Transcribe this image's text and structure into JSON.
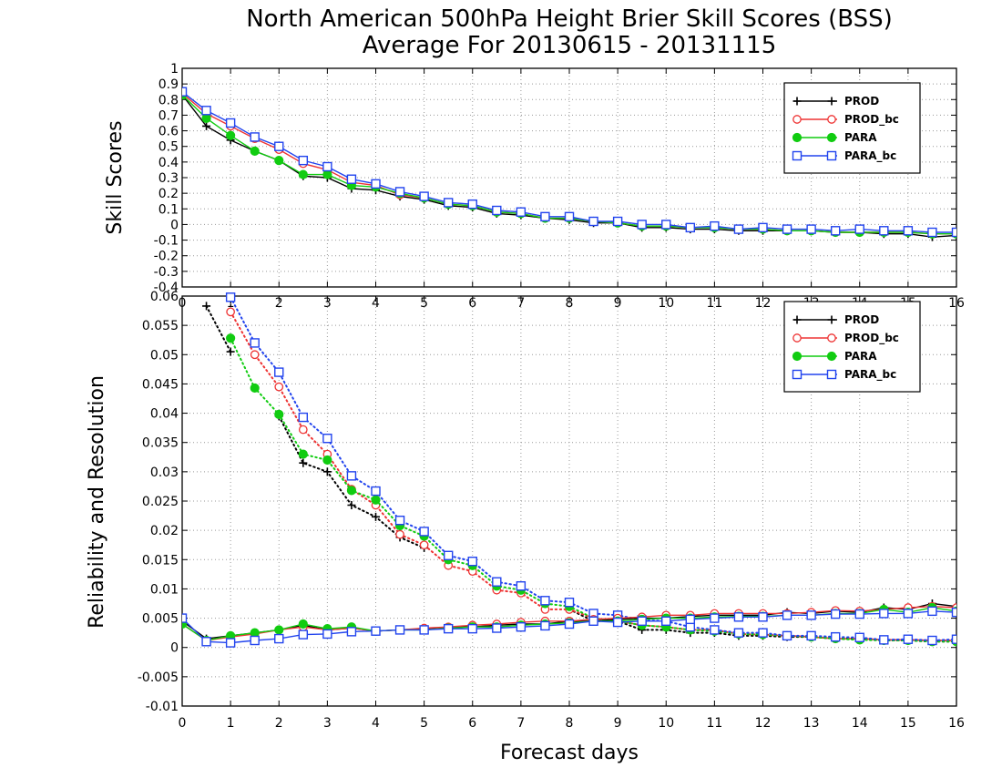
{
  "title": {
    "line1": "North American 500hPa Height Brier Skill Scores (BSS)",
    "line2": "Average For 20130615 - 20131115"
  },
  "xlabel": "Forecast days",
  "colors": {
    "PROD": "#000000",
    "PROD_bc": "#ee3333",
    "PARA": "#11cc11",
    "PARA_bc": "#2244ee",
    "grid": "#999999"
  },
  "chart_data": [
    {
      "type": "line",
      "name": "top-panel",
      "ylabel": "Skill Scores",
      "xlim": [
        0,
        16
      ],
      "ylim": [
        -0.4,
        1
      ],
      "xticks": [
        0,
        1,
        2,
        3,
        4,
        5,
        6,
        7,
        8,
        9,
        10,
        11,
        12,
        13,
        14,
        15,
        16
      ],
      "xtick_labels": [
        "0",
        "1",
        "2",
        "3",
        "4",
        "5",
        "6",
        "7",
        "8",
        "9",
        "10",
        "11",
        "12",
        "13",
        "14",
        "15",
        "16"
      ],
      "yticks": [
        -0.4,
        -0.3,
        -0.2,
        -0.1,
        0,
        0.1,
        0.2,
        0.3,
        0.4,
        0.5,
        0.6,
        0.7,
        0.8,
        0.9,
        1
      ],
      "ytick_labels": [
        "-0.4",
        "-0.3",
        "-0.2",
        "-0.1",
        "0",
        "0.1",
        "0.2",
        "0.3",
        "0.4",
        "0.5",
        "0.6",
        "0.7",
        "0.8",
        "0.9",
        "1"
      ],
      "grid": true,
      "legend": "top-right",
      "x": [
        0,
        0.5,
        1,
        1.5,
        2,
        2.5,
        3,
        3.5,
        4,
        4.5,
        5,
        5.5,
        6,
        6.5,
        7,
        7.5,
        8,
        8.5,
        9,
        9.5,
        10,
        10.5,
        11,
        11.5,
        12,
        12.5,
        13,
        13.5,
        14,
        14.5,
        15,
        15.5,
        16
      ],
      "series": [
        {
          "name": "PROD",
          "marker": "plus",
          "values": [
            0.83,
            0.63,
            0.54,
            0.47,
            0.41,
            0.31,
            0.3,
            0.23,
            0.22,
            0.18,
            0.16,
            0.12,
            0.11,
            0.07,
            0.06,
            0.04,
            0.03,
            0.01,
            0.01,
            -0.02,
            -0.02,
            -0.03,
            -0.03,
            -0.04,
            -0.04,
            -0.04,
            -0.04,
            -0.05,
            -0.05,
            -0.06,
            -0.06,
            -0.08,
            -0.07
          ]
        },
        {
          "name": "PROD_bc",
          "marker": "circle-open",
          "values": [
            0.84,
            0.71,
            0.63,
            0.55,
            0.48,
            0.39,
            0.35,
            0.27,
            0.25,
            0.19,
            0.17,
            0.13,
            0.12,
            0.08,
            0.07,
            0.04,
            0.04,
            0.02,
            0.01,
            -0.01,
            -0.01,
            -0.02,
            -0.02,
            -0.03,
            -0.03,
            -0.04,
            -0.04,
            -0.05,
            -0.05,
            -0.05,
            -0.05,
            -0.06,
            -0.06
          ]
        },
        {
          "name": "PARA",
          "marker": "circle-filled",
          "values": [
            0.83,
            0.68,
            0.57,
            0.47,
            0.41,
            0.32,
            0.32,
            0.25,
            0.24,
            0.2,
            0.17,
            0.13,
            0.12,
            0.08,
            0.07,
            0.04,
            0.04,
            0.02,
            0.01,
            -0.01,
            -0.01,
            -0.02,
            -0.02,
            -0.03,
            -0.03,
            -0.04,
            -0.04,
            -0.05,
            -0.05,
            -0.05,
            -0.05,
            -0.06,
            -0.06
          ]
        },
        {
          "name": "PARA_bc",
          "marker": "square-open",
          "values": [
            0.85,
            0.73,
            0.65,
            0.56,
            0.5,
            0.41,
            0.37,
            0.29,
            0.26,
            0.21,
            0.18,
            0.14,
            0.13,
            0.09,
            0.08,
            0.05,
            0.05,
            0.02,
            0.02,
            0.0,
            0.0,
            -0.02,
            -0.01,
            -0.03,
            -0.02,
            -0.03,
            -0.03,
            -0.04,
            -0.03,
            -0.04,
            -0.04,
            -0.05,
            -0.05
          ]
        }
      ]
    },
    {
      "type": "line",
      "name": "bottom-panel",
      "ylabel": "Reliability and Resolution",
      "xlim": [
        0,
        16
      ],
      "ylim": [
        -0.01,
        0.06
      ],
      "xticks": [
        0,
        1,
        2,
        3,
        4,
        5,
        6,
        7,
        8,
        9,
        10,
        11,
        12,
        13,
        14,
        15,
        16
      ],
      "xtick_labels": [
        "0",
        "1",
        "2",
        "3",
        "4",
        "5",
        "6",
        "7",
        "8",
        "9",
        "10",
        "11",
        "12",
        "13",
        "14",
        "15",
        "16"
      ],
      "yticks": [
        -0.01,
        -0.005,
        0,
        0.005,
        0.01,
        0.015,
        0.02,
        0.025,
        0.03,
        0.035,
        0.04,
        0.045,
        0.05,
        0.055,
        0.06
      ],
      "ytick_labels": [
        "-0.01",
        "-0.005",
        "0",
        "0.005",
        "0.01",
        "0.015",
        "0.02",
        "0.025",
        "0.03",
        "0.035",
        "0.04",
        "0.045",
        "0.05",
        "0.055",
        "0.06"
      ],
      "grid": true,
      "legend": "top-right",
      "x": [
        0,
        0.5,
        1,
        1.5,
        2,
        2.5,
        3,
        3.5,
        4,
        4.5,
        5,
        5.5,
        6,
        6.5,
        7,
        7.5,
        8,
        8.5,
        9,
        9.5,
        10,
        10.5,
        11,
        11.5,
        12,
        12.5,
        13,
        13.5,
        14,
        14.5,
        15,
        15.5,
        16
      ],
      "series": [
        {
          "name": "PROD",
          "group": "resolution",
          "style": "dotted",
          "marker": "plus",
          "values": [
            null,
            0.0583,
            0.0505,
            null,
            0.0395,
            0.0315,
            0.03,
            0.0243,
            0.0223,
            0.0188,
            0.017,
            null,
            null,
            null,
            null,
            null,
            0.0065,
            0.0045,
            0.0045,
            0.003,
            0.003,
            0.0025,
            0.0025,
            0.002,
            0.002,
            0.0018,
            0.0018,
            0.0015,
            0.0015,
            0.0012,
            0.0012,
            0.001,
            0.001
          ]
        },
        {
          "name": "PROD_bc",
          "group": "resolution",
          "style": "dotted",
          "marker": "circle-open",
          "values": [
            null,
            null,
            0.0573,
            0.05,
            0.0445,
            0.0372,
            0.033,
            0.027,
            0.0243,
            0.0193,
            0.0175,
            0.014,
            0.013,
            0.0098,
            0.0093,
            0.0065,
            0.0065,
            0.005,
            0.0045,
            0.0038,
            0.0035,
            0.003,
            0.003,
            0.0023,
            0.0022,
            0.002,
            0.0018,
            0.0015,
            0.0015,
            0.0013,
            0.0013,
            0.0012,
            0.0012
          ]
        },
        {
          "name": "PARA",
          "group": "resolution",
          "style": "dotted",
          "marker": "circle-filled",
          "values": [
            null,
            null,
            0.0528,
            0.0443,
            0.0398,
            0.033,
            0.032,
            0.0268,
            0.0252,
            0.0208,
            0.019,
            0.015,
            0.014,
            0.0105,
            0.0098,
            0.0075,
            0.007,
            0.005,
            0.0045,
            0.0038,
            0.0035,
            0.003,
            0.0028,
            0.0023,
            0.0022,
            0.002,
            0.0018,
            0.0015,
            0.0013,
            0.0012,
            0.0012,
            0.001,
            0.001
          ]
        },
        {
          "name": "PARA_bc",
          "group": "resolution",
          "style": "dotted",
          "marker": "square-open",
          "values": [
            null,
            null,
            0.0598,
            0.052,
            0.047,
            0.0393,
            0.0357,
            0.0293,
            0.0267,
            0.0217,
            0.0198,
            0.0157,
            0.0147,
            0.0112,
            0.0105,
            0.008,
            0.0077,
            0.0058,
            0.0055,
            0.0047,
            0.0045,
            0.0035,
            0.003,
            0.0025,
            0.0025,
            0.002,
            0.002,
            0.0018,
            0.0017,
            0.0013,
            0.0014,
            0.0012,
            0.0014
          ]
        },
        {
          "name": "PROD",
          "group": "reliability",
          "style": "solid",
          "marker": "plus",
          "values": [
            0.0045,
            0.0015,
            0.002,
            0.0025,
            0.003,
            0.0038,
            0.003,
            0.0033,
            0.0028,
            0.003,
            0.0032,
            0.0035,
            0.0035,
            0.0038,
            0.004,
            0.004,
            0.0045,
            0.0045,
            0.0048,
            0.005,
            0.005,
            0.0053,
            0.0055,
            0.0055,
            0.0055,
            0.006,
            0.0058,
            0.0062,
            0.006,
            0.0068,
            0.0065,
            0.0075,
            0.007
          ]
        },
        {
          "name": "PROD_bc",
          "group": "reliability",
          "style": "solid",
          "marker": "circle-open",
          "values": [
            0.004,
            0.0012,
            0.0018,
            0.0023,
            0.003,
            0.0035,
            0.003,
            0.0033,
            0.0028,
            0.003,
            0.0033,
            0.0035,
            0.0038,
            0.004,
            0.0043,
            0.0045,
            0.0045,
            0.0048,
            0.005,
            0.0052,
            0.0055,
            0.0055,
            0.0058,
            0.0058,
            0.0058,
            0.0058,
            0.006,
            0.0063,
            0.0062,
            0.0065,
            0.0068,
            0.007,
            0.0068
          ]
        },
        {
          "name": "PARA",
          "group": "reliability",
          "style": "solid",
          "marker": "circle-filled",
          "values": [
            0.004,
            0.0012,
            0.002,
            0.0025,
            0.003,
            0.004,
            0.0032,
            0.0035,
            0.0028,
            0.003,
            0.003,
            0.0033,
            0.0035,
            0.0035,
            0.0038,
            0.004,
            0.0042,
            0.0045,
            0.0045,
            0.0048,
            0.005,
            0.005,
            0.0052,
            0.0053,
            0.0053,
            0.0055,
            0.0055,
            0.0058,
            0.0058,
            0.0065,
            0.006,
            0.0068,
            0.0062
          ]
        },
        {
          "name": "PARA_bc",
          "group": "reliability",
          "style": "solid",
          "marker": "square-open",
          "values": [
            0.005,
            0.001,
            0.0008,
            0.0012,
            0.0015,
            0.0022,
            0.0023,
            0.0027,
            0.0028,
            0.003,
            0.003,
            0.0032,
            0.0032,
            0.0033,
            0.0035,
            0.0037,
            0.004,
            0.0045,
            0.0043,
            0.0045,
            0.0045,
            0.0048,
            0.005,
            0.0052,
            0.0052,
            0.0055,
            0.0055,
            0.0057,
            0.0057,
            0.0058,
            0.0058,
            0.0062,
            0.006
          ]
        }
      ]
    }
  ]
}
